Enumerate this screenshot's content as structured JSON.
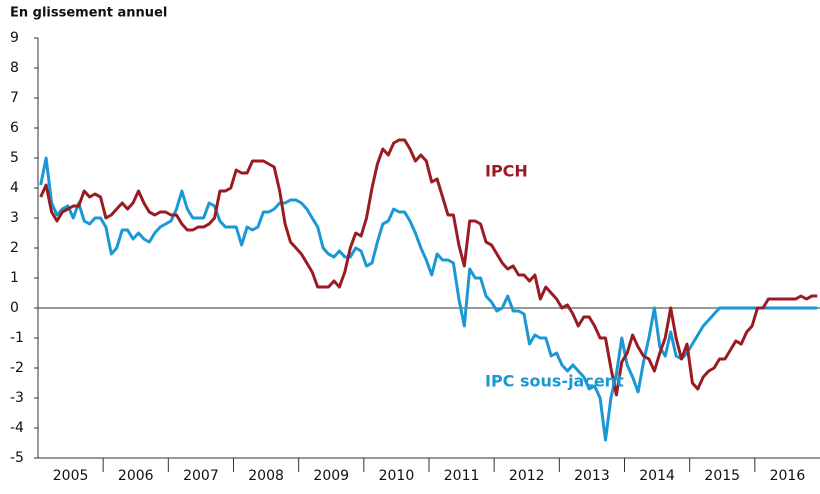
{
  "chart_data": {
    "type": "line",
    "title": "En glissement annuel",
    "categories": [
      null,
      null,
      null,
      null,
      null,
      null,
      "2005",
      null,
      null,
      null,
      null,
      null,
      null,
      null,
      null,
      null,
      null,
      null,
      "2006",
      null,
      null,
      null,
      null,
      null,
      null,
      null,
      null,
      null,
      null,
      null,
      "2007",
      null,
      null,
      null,
      null,
      null,
      null,
      null,
      null,
      null,
      null,
      null,
      "2008",
      null,
      null,
      null,
      null,
      null,
      null,
      null,
      null,
      null,
      null,
      null,
      "2009",
      null,
      null,
      null,
      null,
      null,
      null,
      null,
      null,
      null,
      null,
      null,
      "2010",
      null,
      null,
      null,
      null,
      null,
      null,
      null,
      null,
      null,
      null,
      null,
      "2011",
      null,
      null,
      null,
      null,
      null,
      null,
      null,
      null,
      null,
      null,
      null,
      "2012",
      null,
      null,
      null,
      null,
      null,
      null,
      null,
      null,
      null,
      null,
      null,
      "2013",
      null,
      null,
      null,
      null,
      null,
      null,
      null,
      null,
      null,
      null,
      null,
      "2014",
      null,
      null,
      null,
      null,
      null,
      null,
      null,
      null,
      null,
      null,
      null,
      "2015",
      null,
      null,
      null,
      null,
      null,
      null,
      null,
      null,
      null,
      null,
      null,
      "2016",
      null,
      null,
      null,
      null,
      null
    ],
    "series": [
      {
        "name": "IPCH",
        "color": "#9b1b22",
        "values": [
          3.7,
          4.1,
          3.2,
          2.9,
          3.2,
          3.3,
          3.4,
          3.4,
          3.9,
          3.7,
          3.8,
          3.7,
          3.0,
          3.1,
          3.3,
          3.5,
          3.3,
          3.5,
          3.9,
          3.5,
          3.2,
          3.1,
          3.2,
          3.2,
          3.1,
          3.1,
          2.8,
          2.6,
          2.6,
          2.7,
          2.7,
          2.8,
          3.0,
          3.9,
          3.9,
          4.0,
          4.6,
          4.5,
          4.5,
          4.9,
          4.9,
          4.9,
          4.8,
          4.7,
          3.9,
          2.8,
          2.2,
          2.0,
          1.8,
          1.5,
          1.2,
          0.7,
          0.7,
          0.7,
          0.9,
          0.7,
          1.2,
          2.0,
          2.5,
          2.4,
          3.0,
          4.0,
          4.8,
          5.3,
          5.1,
          5.5,
          5.6,
          5.6,
          5.3,
          4.9,
          5.1,
          4.9,
          4.2,
          4.3,
          3.7,
          3.1,
          3.1,
          2.1,
          1.4,
          2.9,
          2.9,
          2.8,
          2.2,
          2.1,
          1.8,
          1.5,
          1.3,
          1.4,
          1.1,
          1.1,
          0.9,
          1.1,
          0.3,
          0.7,
          0.5,
          0.3,
          0.0,
          0.1,
          -0.2,
          -0.6,
          -0.3,
          -0.3,
          -0.6,
          -1.0,
          -1.0,
          -2.0,
          -2.9,
          -1.8,
          -1.5,
          -0.9,
          -1.3,
          -1.6,
          -1.7,
          -2.1,
          -1.5,
          -1.0,
          0.0,
          -1.0,
          -1.7,
          -1.2,
          -2.5,
          -2.7,
          -2.3,
          -2.1,
          -2.0,
          -1.7,
          -1.7,
          -1.4,
          -1.1,
          -1.2,
          -0.8,
          -0.6,
          0.0,
          0.0,
          0.3,
          0.3,
          0.3,
          0.3,
          0.3,
          0.3,
          0.4,
          0.3,
          0.4,
          0.4
        ]
      },
      {
        "name": "IPC sous-jacent",
        "color": "#1a98d5",
        "values": [
          4.1,
          5.0,
          3.5,
          3.1,
          3.3,
          3.4,
          3.0,
          3.5,
          2.9,
          2.8,
          3.0,
          3.0,
          2.7,
          1.8,
          2.0,
          2.6,
          2.6,
          2.3,
          2.5,
          2.3,
          2.2,
          2.5,
          2.7,
          2.8,
          2.9,
          3.3,
          3.9,
          3.3,
          3.0,
          3.0,
          3.0,
          3.5,
          3.4,
          2.9,
          2.7,
          2.7,
          2.7,
          2.1,
          2.7,
          2.6,
          2.7,
          3.2,
          3.2,
          3.3,
          3.5,
          3.5,
          3.6,
          3.6,
          3.5,
          3.3,
          3.0,
          2.7,
          2.0,
          1.8,
          1.7,
          1.9,
          1.7,
          1.7,
          2.0,
          1.9,
          1.4,
          1.5,
          2.2,
          2.8,
          2.9,
          3.3,
          3.2,
          3.2,
          2.9,
          2.5,
          2.0,
          1.6,
          1.1,
          1.8,
          1.6,
          1.6,
          1.5,
          0.3,
          -0.6,
          1.3,
          1.0,
          1.0,
          0.4,
          0.2,
          -0.1,
          0.0,
          0.4,
          -0.1,
          -0.1,
          -0.2,
          -1.2,
          -0.9,
          -1.0,
          -1.0,
          -1.6,
          -1.5,
          -1.9,
          -2.1,
          -1.9,
          -2.1,
          -2.3,
          -2.7,
          -2.6,
          -3.0,
          -4.4,
          -3.0,
          -2.2,
          -1.0,
          -1.9,
          -2.3,
          -2.8,
          -1.8,
          -1.0,
          0.0,
          -1.3,
          -1.6,
          -0.8,
          -1.6,
          -1.7,
          -1.5,
          -1.2,
          -0.9,
          -0.6,
          -0.4,
          -0.2,
          0.0,
          0.0,
          0.0,
          0.0,
          0.0,
          0.0,
          0.0,
          0.0,
          0.0,
          0.0,
          0.0,
          0.0,
          0.0,
          0.0,
          0.0,
          0.0,
          0.0,
          0.0,
          0.0
        ]
      }
    ],
    "ylim": [
      -5,
      9
    ],
    "yticks": [
      -5,
      -4,
      -3,
      -2,
      -1,
      0,
      1,
      2,
      3,
      4,
      5,
      6,
      7,
      8,
      9
    ]
  }
}
